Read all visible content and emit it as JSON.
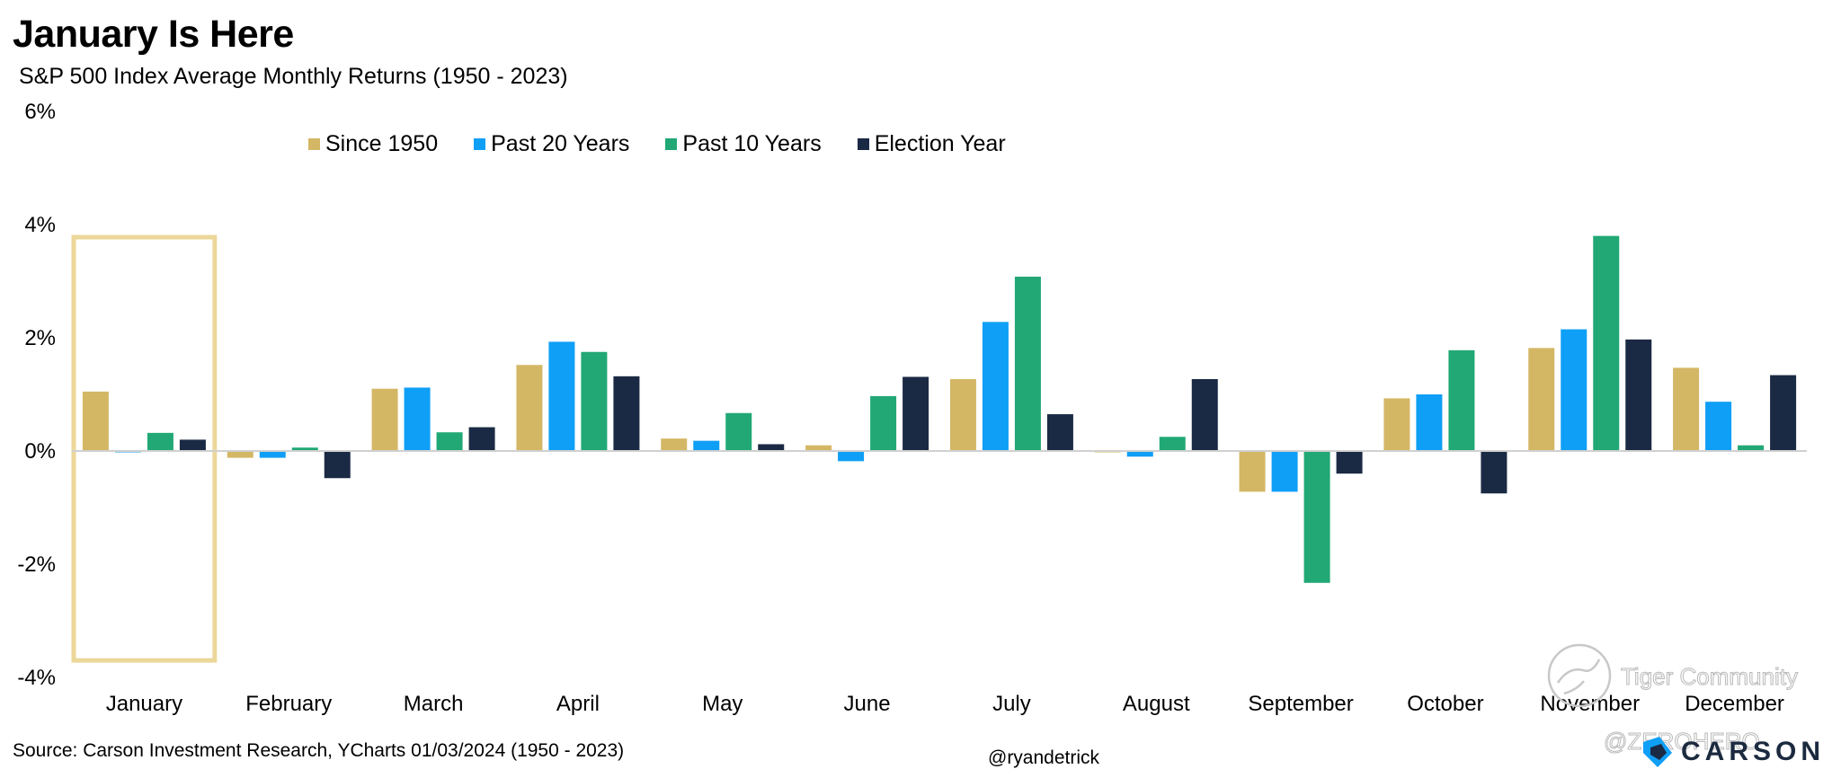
{
  "title": "January Is Here",
  "subtitle": "S&P 500 Index Average Monthly Returns (1950 - 2023)",
  "source": "Source: Carson Investment Research, YCharts 01/03/2024 (1950 - 2023)",
  "handle": "@ryandetrick",
  "brand": "CARSON",
  "watermark": {
    "line1": "Tiger Community",
    "line2": "@ZEROHERO"
  },
  "colors": {
    "since_1950": "#d4b765",
    "past_20": "#0f9ff6",
    "past_10": "#21a875",
    "election": "#1b2a44",
    "highlight_box": "#ecd79a",
    "zero_line": "#d0d0d0"
  },
  "legend": [
    {
      "label": "Since 1950",
      "color": "#d4b765"
    },
    {
      "label": "Past 20 Years",
      "color": "#0f9ff6"
    },
    {
      "label": "Past 10 Years",
      "color": "#21a875"
    },
    {
      "label": "Election Year",
      "color": "#1b2a44"
    }
  ],
  "chart_data": {
    "type": "bar",
    "title": "January Is Here",
    "subtitle": "S&P 500 Index Average Monthly Returns (1950 - 2023)",
    "categories": [
      "January",
      "February",
      "March",
      "April",
      "May",
      "June",
      "July",
      "August",
      "September",
      "October",
      "November",
      "December"
    ],
    "series": [
      {
        "name": "Since 1950",
        "values": [
          1.05,
          -0.12,
          1.1,
          1.52,
          0.22,
          0.1,
          1.27,
          -0.02,
          -0.72,
          0.93,
          1.82,
          1.47
        ]
      },
      {
        "name": "Past 20 Years",
        "values": [
          -0.02,
          -0.12,
          1.12,
          1.93,
          0.18,
          -0.18,
          2.28,
          -0.1,
          -0.72,
          1.0,
          2.15,
          0.87
        ]
      },
      {
        "name": "Past 10 Years",
        "values": [
          0.32,
          0.06,
          0.33,
          1.75,
          0.67,
          0.97,
          3.08,
          0.25,
          -2.33,
          1.78,
          3.8,
          0.1
        ]
      },
      {
        "name": "Election Year",
        "values": [
          0.2,
          -0.48,
          0.42,
          1.32,
          0.12,
          1.31,
          0.65,
          1.27,
          -0.4,
          -0.75,
          1.97,
          1.34
        ]
      }
    ],
    "yticks": [
      "6%",
      "4%",
      "2%",
      "0%",
      "-2%",
      "-4%"
    ],
    "ylim": [
      -4,
      6
    ],
    "highlight_category": "January",
    "legend_position": "top",
    "grid": false
  }
}
